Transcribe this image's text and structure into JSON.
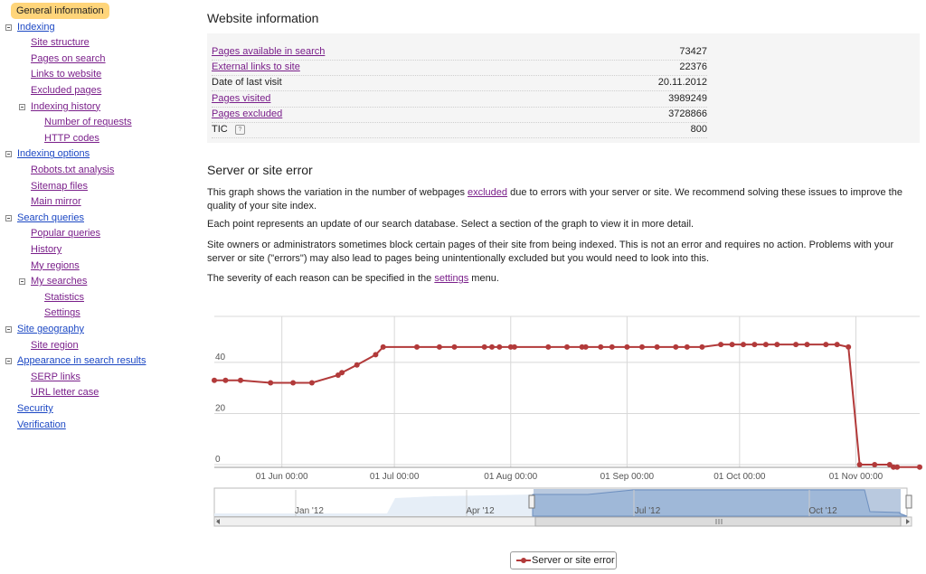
{
  "sidebar": {
    "items": [
      {
        "label": "General information",
        "level": 0,
        "active": true
      },
      {
        "label": "Indexing",
        "level": 0,
        "toggle": true
      },
      {
        "label": "Site structure",
        "level": 1
      },
      {
        "label": "Pages on search",
        "level": 1
      },
      {
        "label": "Links to website",
        "level": 1
      },
      {
        "label": "Excluded pages",
        "level": 1
      },
      {
        "label": "Indexing history",
        "level": 1,
        "toggle": true
      },
      {
        "label": "Number of requests",
        "level": 2
      },
      {
        "label": "HTTP codes",
        "level": 2
      },
      {
        "label": "Indexing options",
        "level": 0,
        "toggle": true
      },
      {
        "label": "Robots.txt analysis",
        "level": 1
      },
      {
        "label": "Sitemap files",
        "level": 1
      },
      {
        "label": "Main mirror",
        "level": 1
      },
      {
        "label": "Search queries",
        "level": 0,
        "toggle": true
      },
      {
        "label": "Popular queries",
        "level": 1
      },
      {
        "label": "History",
        "level": 1
      },
      {
        "label": "My regions",
        "level": 1
      },
      {
        "label": "My searches",
        "level": 1,
        "toggle": true
      },
      {
        "label": "Statistics",
        "level": 2
      },
      {
        "label": "Settings",
        "level": 2
      },
      {
        "label": "Site geography",
        "level": 0,
        "toggle": true
      },
      {
        "label": "Site region",
        "level": 1
      },
      {
        "label": "Appearance in search results",
        "level": 0,
        "toggle": true
      },
      {
        "label": "SERP links",
        "level": 1
      },
      {
        "label": "URL letter case",
        "level": 1
      },
      {
        "label": "Security",
        "level": 0
      },
      {
        "label": "Verification",
        "level": 0
      }
    ]
  },
  "main": {
    "title": "Website information",
    "info_rows": [
      {
        "label": "Pages available in search",
        "value": "73427",
        "link": true
      },
      {
        "label": "External links to site",
        "value": "22376",
        "link": true
      },
      {
        "label": "Date of last visit",
        "value": "20.11.2012",
        "link": false
      },
      {
        "label": "Pages visited",
        "value": "3989249",
        "link": true
      },
      {
        "label": "Pages excluded",
        "value": "3728866",
        "link": true
      },
      {
        "label": "TIC",
        "value": "800",
        "link": false,
        "help": "?"
      }
    ],
    "error_title": "Server or site error",
    "p1_a": "This graph shows the variation in the number of webpages ",
    "p1_link": "excluded",
    "p1_b": " due to errors with your server or site. We recommend solving these issues to improve the quality of your site index.",
    "p2": "Each point represents an update of our search database. Select a section of the graph to view it in more detail.",
    "p3": "Site owners or administrators sometimes block certain pages of their site from being indexed. This is not an error and requires no action. Problems with your server or site (\"errors\") may also lead to pages being unintentionally excluded but you would need to look into this.",
    "p4_a": "The severity of each reason can be specified in the ",
    "p4_link": "settings",
    "p4_b": " menu.",
    "legend_label": "Server or site error"
  },
  "chart_data": {
    "type": "line",
    "color": "#b23a3a",
    "navigator_color": "#9fb8d8",
    "x_ticks": [
      "01 Jun 00:00",
      "01 Jul 00:00",
      "01 Aug 00:00",
      "01 Sep 00:00",
      "01 Oct 00:00",
      "01 Nov 00:00"
    ],
    "y_ticks": [
      0,
      20,
      40
    ],
    "ylim": [
      0,
      58
    ],
    "navigator_ticks": [
      "Jan '12",
      "Apr '12",
      "Jul '12",
      "Oct '12"
    ],
    "series": [
      {
        "name": "Server or site error",
        "x": [
          "2012-05-14",
          "2012-05-17",
          "2012-05-21",
          "2012-05-29",
          "2012-06-04",
          "2012-06-09",
          "2012-06-16",
          "2012-06-17",
          "2012-06-21",
          "2012-06-26",
          "2012-06-28",
          "2012-07-07",
          "2012-07-13",
          "2012-07-17",
          "2012-07-25",
          "2012-07-27",
          "2012-07-29",
          "2012-08-01",
          "2012-08-02",
          "2012-08-11",
          "2012-08-16",
          "2012-08-20",
          "2012-08-21",
          "2012-08-25",
          "2012-08-28",
          "2012-09-01",
          "2012-09-05",
          "2012-09-09",
          "2012-09-14",
          "2012-09-17",
          "2012-09-21",
          "2012-09-26",
          "2012-09-29",
          "2012-10-02",
          "2012-10-05",
          "2012-10-08",
          "2012-10-11",
          "2012-10-16",
          "2012-10-19",
          "2012-10-24",
          "2012-10-27",
          "2012-10-30",
          "2012-11-02",
          "2012-11-06",
          "2012-11-10",
          "2012-11-11",
          "2012-11-12",
          "2012-11-18"
        ],
        "values": [
          33,
          33,
          33,
          32,
          32,
          32,
          35,
          36,
          39,
          43,
          46,
          46,
          46,
          46,
          46,
          46,
          46,
          46,
          46,
          46,
          46,
          46,
          46,
          46,
          46,
          46,
          46,
          46,
          46,
          46,
          46,
          47,
          47,
          47,
          47,
          47,
          47,
          47,
          47,
          47,
          47,
          46,
          0,
          0,
          0,
          -1,
          -1,
          -1
        ]
      }
    ]
  }
}
